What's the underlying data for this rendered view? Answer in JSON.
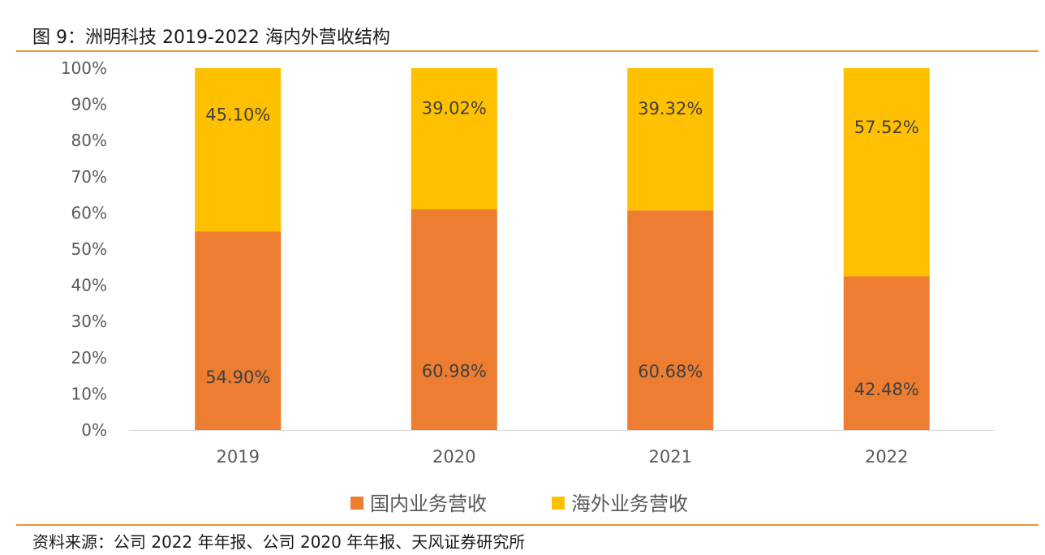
{
  "figure": {
    "title": "图 9：洲明科技 2019-2022 海内外营收结构",
    "source": "资料来源：公司 2022 年年报、公司 2020 年年报、天风证券研究所"
  },
  "chart_data": {
    "type": "bar",
    "stacked": true,
    "categories": [
      "2019",
      "2020",
      "2021",
      "2022"
    ],
    "series": [
      {
        "name": "国内业务营收",
        "color": "#ed7d31",
        "values": [
          54.9,
          60.98,
          60.68,
          42.48
        ],
        "labels": [
          "54.90%",
          "60.98%",
          "60.68%",
          "42.48%"
        ]
      },
      {
        "name": "海外业务营收",
        "color": "#ffc000",
        "values": [
          45.1,
          39.02,
          39.32,
          57.52
        ],
        "labels": [
          "45.10%",
          "39.02%",
          "39.32%",
          "57.52%"
        ]
      }
    ],
    "ylim": [
      0,
      100
    ],
    "yticks": [
      "0%",
      "10%",
      "20%",
      "30%",
      "40%",
      "50%",
      "60%",
      "70%",
      "80%",
      "90%",
      "100%"
    ],
    "grid": false,
    "legend": "bottom"
  }
}
